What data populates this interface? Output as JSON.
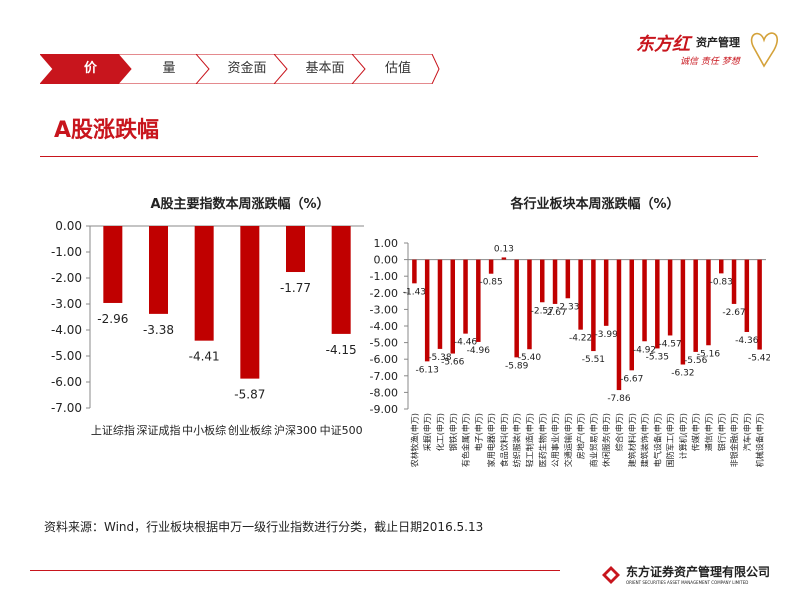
{
  "nav": {
    "tabs": [
      {
        "label": "价",
        "active": true
      },
      {
        "label": "量",
        "active": false
      },
      {
        "label": "资金面",
        "active": false
      },
      {
        "label": "基本面",
        "active": false
      },
      {
        "label": "估值",
        "active": false
      }
    ]
  },
  "brand": {
    "logo_text": "东方红",
    "logo_subtitle": "资产管理",
    "slogan": "诚信 责任 梦想",
    "footer_company": "东方证券资产管理有限公司",
    "footer_company_en": "ORIENT SECURITIES ASSET MANAGEMENT COMPANY LIMITED"
  },
  "page": {
    "title": "A股涨跌幅",
    "source_note": "资料来源：Wind，行业板块根据申万一级行业指数进行分类，截止日期2016.5.13"
  },
  "colors": {
    "accent": "#c8151d",
    "bar": "#c00000"
  },
  "chart_data": [
    {
      "type": "bar",
      "title": "A股主要指数本周涨跌幅（%）",
      "categories": [
        "上证综指",
        "深证成指",
        "中小板综",
        "创业板综",
        "沪深300",
        "中证500"
      ],
      "values": [
        -2.96,
        -3.38,
        -4.41,
        -5.87,
        -1.77,
        -4.15
      ],
      "data_labels": [
        "-2.96",
        "-3.38",
        "-4.41",
        "-5.87",
        "-1.77",
        "-4.15"
      ],
      "ylim": [
        -7.0,
        0.0
      ],
      "yticks": [
        "0.00",
        "-1.00",
        "-2.00",
        "-3.00",
        "-4.00",
        "-5.00",
        "-6.00",
        "-7.00"
      ],
      "xlabel": "",
      "ylabel": ""
    },
    {
      "type": "bar",
      "title": "各行业板块本周涨跌幅（%）",
      "categories": [
        "农林牧渔(申万)",
        "采掘(申万)",
        "化工(申万)",
        "钢铁(申万)",
        "有色金属(申万)",
        "电子(申万)",
        "家用电器(申万)",
        "食品饮料(申万)",
        "纺织服装(申万)",
        "轻工制造(申万)",
        "医药生物(申万)",
        "公用事业(申万)",
        "交通运输(申万)",
        "房地产(申万)",
        "商业贸易(申万)",
        "休闲服务(申万)",
        "综合(申万)",
        "建筑材料(申万)",
        "建筑装饰(申万)",
        "电气设备(申万)",
        "国防军工(申万)",
        "计算机(申万)",
        "传媒(申万)",
        "通信(申万)",
        "银行(申万)",
        "非银金融(申万)",
        "汽车(申万)",
        "机械设备(申万)"
      ],
      "values": [
        -1.43,
        -6.13,
        -5.38,
        -5.66,
        -4.46,
        -4.96,
        -0.85,
        0.13,
        -5.89,
        -5.4,
        -2.57,
        -2.67,
        -2.33,
        -4.22,
        -5.51,
        -3.99,
        -7.86,
        -6.67,
        -4.92,
        -5.35,
        -4.57,
        -6.32,
        -5.56,
        -5.16,
        -0.83,
        -2.67,
        -4.36,
        -5.42
      ],
      "data_labels": [
        "-1.43",
        "-6.13",
        "-5.38",
        "-5.66",
        "-4.46",
        "-4.96",
        "-0.85",
        "0.13",
        "-5.89",
        "-5.40",
        "-2.57",
        "-2.67",
        "-2.33",
        "-4.22",
        "-5.51",
        "-3.99",
        "-7.86",
        "-6.67",
        "-4.92",
        "-5.35",
        "-4.57",
        "-6.32",
        "-5.56",
        "-5.16",
        "-0.83",
        "-2.67",
        "-4.36",
        "-5.42"
      ],
      "ylim": [
        -9.0,
        1.0
      ],
      "yticks": [
        "1.00",
        "0.00",
        "-1.00",
        "-2.00",
        "-3.00",
        "-4.00",
        "-5.00",
        "-6.00",
        "-7.00",
        "-8.00",
        "-9.00"
      ],
      "xlabel": "",
      "ylabel": ""
    }
  ]
}
